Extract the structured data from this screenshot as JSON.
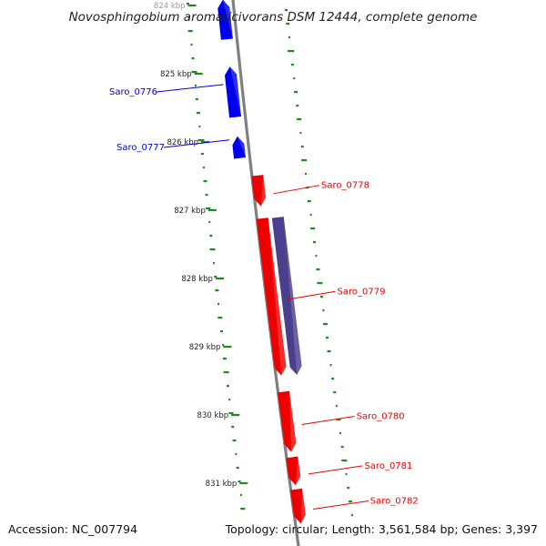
{
  "map": {
    "title": "Novosphingobium aromaticivorans DSM 12444, complete genome",
    "accession_text": "Accession: NC_007794",
    "summary_text": "Topology: circular; Length: 3,561,584 bp; Genes: 3,397"
  },
  "colors": {
    "forward_gene": "#0000ee",
    "reverse_gene": "#ee0000",
    "rna_like_gene": "#4a3f8c",
    "backbone": "#808080",
    "gc_ticks": "#1f8a1f"
  },
  "ticks": [
    {
      "label": "824 kbp"
    },
    {
      "label": "825 kbp"
    },
    {
      "label": "826 kbp"
    },
    {
      "label": "827 kbp"
    },
    {
      "label": "828 kbp"
    },
    {
      "label": "829 kbp"
    },
    {
      "label": "830 kbp"
    },
    {
      "label": "831 kbp"
    }
  ],
  "genes": [
    {
      "label": "Saro_0776",
      "strand": "+",
      "start_kbp": 824.88,
      "end_kbp": 825.62
    },
    {
      "label": "Saro_0777",
      "strand": "+",
      "start_kbp": 825.9,
      "end_kbp": 826.22
    },
    {
      "label": "Saro_0778",
      "strand": "-",
      "start_kbp": 826.5,
      "end_kbp": 826.95
    },
    {
      "label": "Saro_0779",
      "strand": "-",
      "start_kbp": 827.13,
      "end_kbp": 829.43
    },
    {
      "label": "Saro_0780",
      "strand": "-",
      "start_kbp": 829.67,
      "end_kbp": 830.55
    },
    {
      "label": "Saro_0781",
      "strand": "-",
      "start_kbp": 830.63,
      "end_kbp": 831.04
    },
    {
      "label": "Saro_0782",
      "strand": "-",
      "start_kbp": 831.1,
      "end_kbp": 831.6
    }
  ],
  "extra_features": [
    {
      "name": "gene-fragment-top",
      "strand": "+",
      "start_kbp": 823.9,
      "end_kbp": 824.48
    },
    {
      "name": "overlapping-feature",
      "strand": "-",
      "start_kbp": 827.14,
      "end_kbp": 829.45,
      "style": "rna_like"
    }
  ]
}
